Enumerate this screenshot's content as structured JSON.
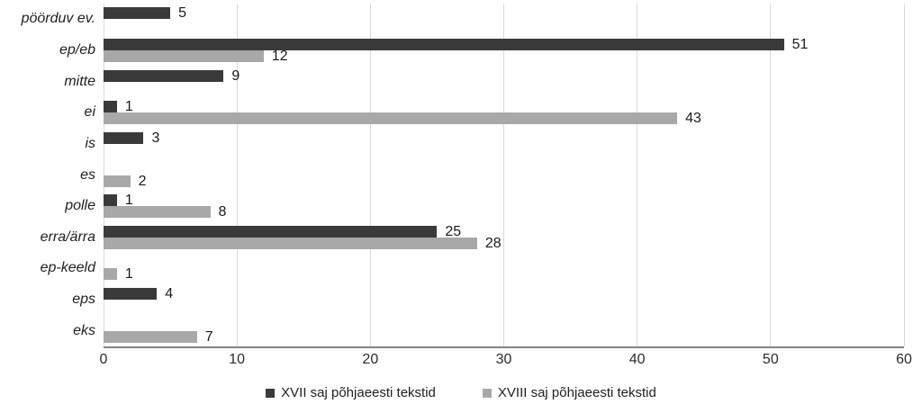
{
  "chart_data": {
    "type": "bar",
    "orientation": "horizontal",
    "title": "",
    "xlabel": "",
    "ylabel": "",
    "categories": [
      "pöörduv ev.",
      "ep/eb",
      "mitte",
      "ei",
      "is",
      "es",
      "polle",
      "erra/ärra",
      "ep-keeld",
      "eps",
      "eks"
    ],
    "series": [
      {
        "name": "XVII saj põhjaeesti tekstid",
        "color": "#3a3a3a",
        "values": [
          5,
          51,
          9,
          1,
          3,
          0,
          1,
          25,
          0,
          4,
          0
        ]
      },
      {
        "name": "XVIII saj põhjaeesti tekstid",
        "color": "#a8a8a8",
        "values": [
          0,
          12,
          0,
          43,
          0,
          2,
          8,
          28,
          1,
          0,
          7
        ]
      }
    ],
    "xlim": [
      0,
      60
    ],
    "x_ticks": [
      0,
      10,
      20,
      30,
      40,
      50,
      60
    ],
    "grid": "vertical-gridlines-on",
    "legend_position": "bottom",
    "data_labels": "shown-at-bar-end"
  },
  "colors": {
    "background": "#ffffff",
    "gridline": "#d9d9d9",
    "axis_line": "#848484",
    "text": "#1f1f1f",
    "series_dark": "#3a3a3a",
    "series_gray": "#a8a8a8"
  }
}
